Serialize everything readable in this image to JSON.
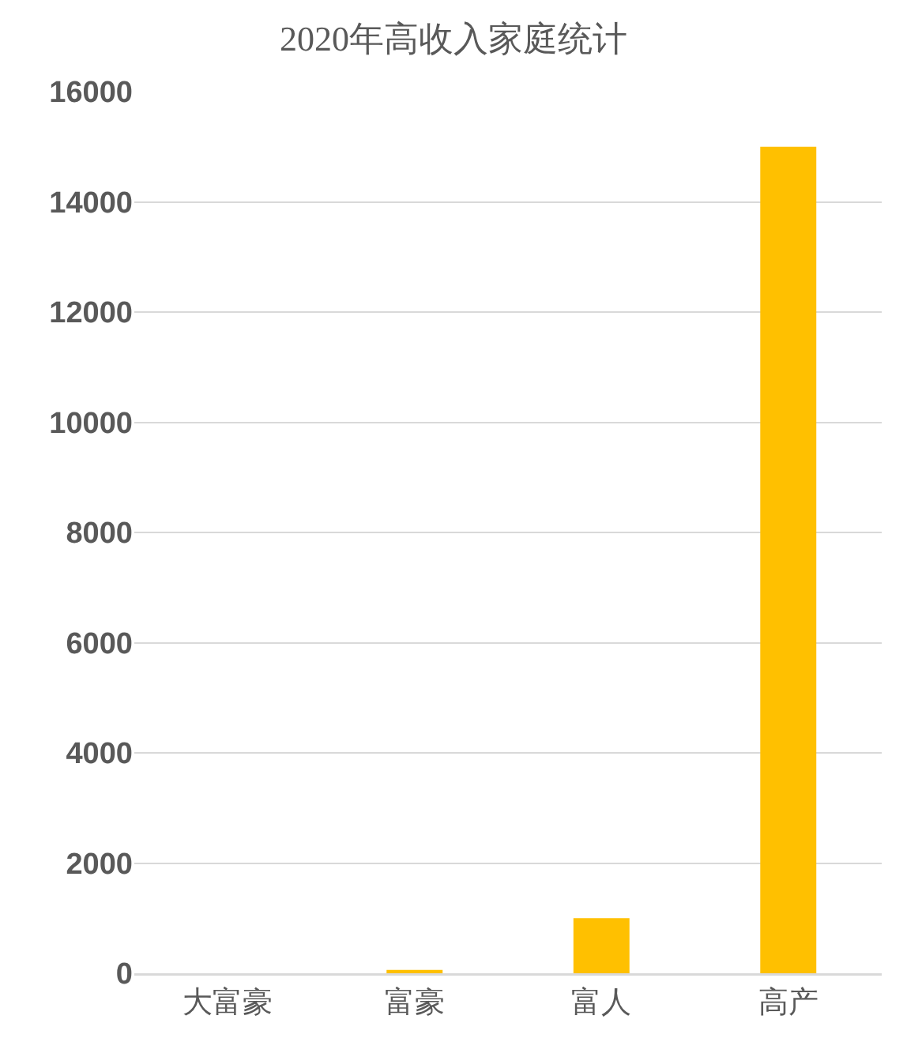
{
  "chart_data": {
    "type": "bar",
    "title": "2020年高收入家庭统计",
    "categories": [
      "大富豪",
      "富豪",
      "富人",
      "高产"
    ],
    "values": [
      null,
      60,
      1000,
      15000
    ],
    "color": "#ffc000",
    "ylim": [
      0,
      16000
    ],
    "yticks": [
      0,
      2000,
      4000,
      6000,
      8000,
      10000,
      12000,
      14000,
      16000
    ],
    "grid": "y"
  }
}
